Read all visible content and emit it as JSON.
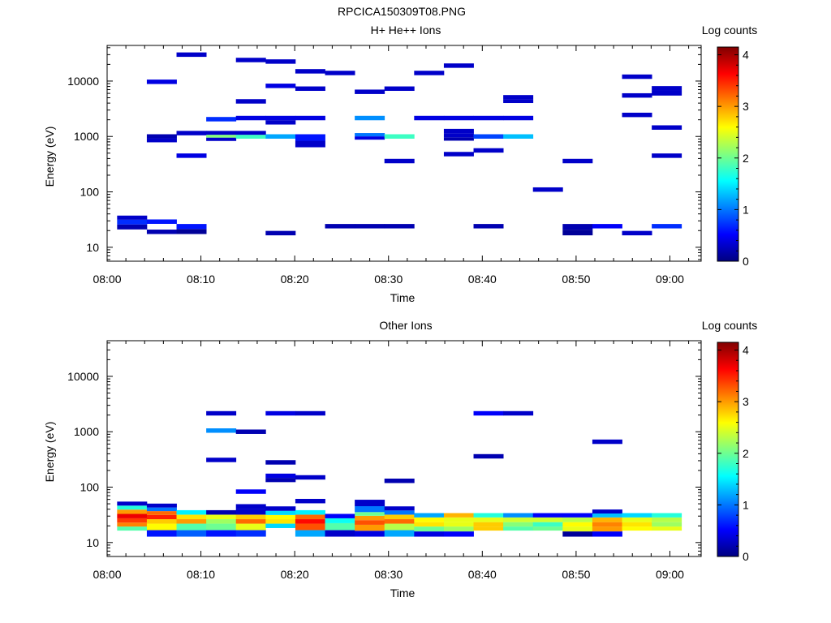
{
  "figure_title": "RPCICA150309T08.PNG",
  "chart_data": [
    {
      "type": "heatmap",
      "title": "H+ He++ Ions",
      "xlabel": "Time",
      "ylabel": "Energy (eV)",
      "colorbar_label": "Log counts",
      "colorbar_ticks": [
        "0",
        "1",
        "2",
        "3",
        "4"
      ],
      "clim": [
        0,
        4.15
      ],
      "colormap": "jet",
      "yscale": "log",
      "ylim": [
        5.6,
        44000
      ],
      "xlim": [
        "08:00",
        "09:03:20"
      ],
      "x_ticks": [
        "08:00",
        "08:10",
        "08:20",
        "08:30",
        "08:40",
        "08:50",
        "09:00"
      ],
      "y_ticks": [
        "10",
        "100",
        "1000",
        "10000"
      ],
      "time_bin_minutes": 3.2,
      "bins": [
        {
          "t": "08:02:40",
          "e": 23,
          "v": 0.2
        },
        {
          "t": "08:02:40",
          "e": 29,
          "v": 0.7
        },
        {
          "t": "08:02:40",
          "e": 34,
          "v": 0.3
        },
        {
          "t": "08:05:50",
          "e": 9700,
          "v": 0.4
        },
        {
          "t": "08:05:50",
          "e": 1000,
          "v": 0.2
        },
        {
          "t": "08:05:50",
          "e": 860,
          "v": 0.3
        },
        {
          "t": "08:05:50",
          "e": 29,
          "v": 0.6
        },
        {
          "t": "08:05:50",
          "e": 19,
          "v": 0.2
        },
        {
          "t": "08:09:00",
          "e": 30000,
          "v": 0.3
        },
        {
          "t": "08:09:00",
          "e": 1150,
          "v": 0.3
        },
        {
          "t": "08:09:00",
          "e": 450,
          "v": 0.4
        },
        {
          "t": "08:09:00",
          "e": 24,
          "v": 0.6
        },
        {
          "t": "08:09:00",
          "e": 19,
          "v": 0.1
        },
        {
          "t": "08:12:10",
          "e": 2050,
          "v": 0.7
        },
        {
          "t": "08:12:10",
          "e": 1150,
          "v": 0.3
        },
        {
          "t": "08:12:10",
          "e": 1000,
          "v": 2.1
        },
        {
          "t": "08:12:10",
          "e": 910,
          "v": 0.3
        },
        {
          "t": "08:15:20",
          "e": 24000,
          "v": 0.3
        },
        {
          "t": "08:15:20",
          "e": 4300,
          "v": 0.3
        },
        {
          "t": "08:15:20",
          "e": 2150,
          "v": 0.4
        },
        {
          "t": "08:15:20",
          "e": 1150,
          "v": 0.3
        },
        {
          "t": "08:15:20",
          "e": 1000,
          "v": 1.8
        },
        {
          "t": "08:18:30",
          "e": 22500,
          "v": 0.3
        },
        {
          "t": "08:18:30",
          "e": 8200,
          "v": 0.4
        },
        {
          "t": "08:18:30",
          "e": 2150,
          "v": 0.4
        },
        {
          "t": "08:18:30",
          "e": 1800,
          "v": 0.3
        },
        {
          "t": "08:18:30",
          "e": 1000,
          "v": 1.2
        },
        {
          "t": "08:18:30",
          "e": 18,
          "v": 0.2
        },
        {
          "t": "08:21:40",
          "e": 15000,
          "v": 0.3
        },
        {
          "t": "08:21:40",
          "e": 7300,
          "v": 0.3
        },
        {
          "t": "08:21:40",
          "e": 2150,
          "v": 0.4
        },
        {
          "t": "08:21:40",
          "e": 1000,
          "v": 0.6
        },
        {
          "t": "08:21:40",
          "e": 700,
          "v": 0.3
        },
        {
          "t": "08:24:50",
          "e": 14000,
          "v": 0.3
        },
        {
          "t": "08:24:50",
          "e": 24,
          "v": 0.2
        },
        {
          "t": "08:28:00",
          "e": 6400,
          "v": 0.3
        },
        {
          "t": "08:28:00",
          "e": 2150,
          "v": 1.1
        },
        {
          "t": "08:28:00",
          "e": 1050,
          "v": 1.0
        },
        {
          "t": "08:28:00",
          "e": 960,
          "v": 0.4
        },
        {
          "t": "08:28:00",
          "e": 24,
          "v": 0.2
        },
        {
          "t": "08:31:10",
          "e": 7300,
          "v": 0.3
        },
        {
          "t": "08:31:10",
          "e": 1000,
          "v": 1.8
        },
        {
          "t": "08:31:10",
          "e": 360,
          "v": 0.3
        },
        {
          "t": "08:31:10",
          "e": 24,
          "v": 0.2
        },
        {
          "t": "08:34:20",
          "e": 14000,
          "v": 0.3
        },
        {
          "t": "08:34:20",
          "e": 2150,
          "v": 0.4
        },
        {
          "t": "08:37:30",
          "e": 19000,
          "v": 0.3
        },
        {
          "t": "08:37:30",
          "e": 2150,
          "v": 0.4
        },
        {
          "t": "08:37:30",
          "e": 1250,
          "v": 0.3
        },
        {
          "t": "08:37:30",
          "e": 1020,
          "v": 0.3
        },
        {
          "t": "08:37:30",
          "e": 920,
          "v": 0.2
        },
        {
          "t": "08:37:30",
          "e": 480,
          "v": 0.3
        },
        {
          "t": "08:40:40",
          "e": 2150,
          "v": 0.4
        },
        {
          "t": "08:40:40",
          "e": 1000,
          "v": 0.8
        },
        {
          "t": "08:40:40",
          "e": 560,
          "v": 0.3
        },
        {
          "t": "08:40:40",
          "e": 24,
          "v": 0.2
        },
        {
          "t": "08:43:50",
          "e": 5100,
          "v": 0.3
        },
        {
          "t": "08:43:50",
          "e": 4400,
          "v": 0.3
        },
        {
          "t": "08:43:50",
          "e": 2150,
          "v": 0.4
        },
        {
          "t": "08:43:50",
          "e": 1000,
          "v": 1.3
        },
        {
          "t": "08:47:00",
          "e": 110,
          "v": 0.3
        },
        {
          "t": "08:50:10",
          "e": 360,
          "v": 0.3
        },
        {
          "t": "08:50:10",
          "e": 24,
          "v": 0.2
        },
        {
          "t": "08:50:10",
          "e": 18,
          "v": 0.1
        },
        {
          "t": "08:53:20",
          "e": 24,
          "v": 0.5
        },
        {
          "t": "08:56:30",
          "e": 12000,
          "v": 0.3
        },
        {
          "t": "08:56:30",
          "e": 5500,
          "v": 0.3
        },
        {
          "t": "08:56:30",
          "e": 2450,
          "v": 0.3
        },
        {
          "t": "08:56:30",
          "e": 18,
          "v": 0.3
        },
        {
          "t": "08:59:40",
          "e": 7400,
          "v": 0.3
        },
        {
          "t": "08:59:40",
          "e": 6000,
          "v": 0.3
        },
        {
          "t": "08:59:40",
          "e": 1450,
          "v": 0.3
        },
        {
          "t": "08:59:40",
          "e": 450,
          "v": 0.3
        },
        {
          "t": "08:59:40",
          "e": 24,
          "v": 0.7
        }
      ]
    },
    {
      "type": "heatmap",
      "title": "Other Ions",
      "xlabel": "Time",
      "ylabel": "Energy (eV)",
      "colorbar_label": "Log counts",
      "colorbar_ticks": [
        "0",
        "1",
        "2",
        "3",
        "4"
      ],
      "clim": [
        0,
        4.15
      ],
      "colormap": "jet",
      "yscale": "log",
      "ylim": [
        5.6,
        44000
      ],
      "xlim": [
        "08:00",
        "09:03:20"
      ],
      "x_ticks": [
        "08:00",
        "08:10",
        "08:20",
        "08:30",
        "08:40",
        "08:50",
        "09:00"
      ],
      "y_ticks": [
        "10",
        "100",
        "1000",
        "10000"
      ],
      "time_bin_minutes": 3.2,
      "bins": [
        {
          "t": "08:02:40",
          "e": 50,
          "v": 0.3
        },
        {
          "t": "08:02:40",
          "e": 43,
          "v": 1.7
        },
        {
          "t": "08:02:40",
          "e": 36,
          "v": 3.0
        },
        {
          "t": "08:02:40",
          "e": 30,
          "v": 3.7
        },
        {
          "t": "08:02:40",
          "e": 25,
          "v": 3.4
        },
        {
          "t": "08:02:40",
          "e": 21,
          "v": 3.1
        },
        {
          "t": "08:02:40",
          "e": 18,
          "v": 1.9
        },
        {
          "t": "08:05:50",
          "e": 46,
          "v": 0.3
        },
        {
          "t": "08:05:50",
          "e": 40,
          "v": 1.0
        },
        {
          "t": "08:05:50",
          "e": 34,
          "v": 3.2
        },
        {
          "t": "08:05:50",
          "e": 29,
          "v": 3.5
        },
        {
          "t": "08:05:50",
          "e": 24,
          "v": 2.8
        },
        {
          "t": "08:05:50",
          "e": 20,
          "v": 2.6
        },
        {
          "t": "08:05:50",
          "e": 14,
          "v": 0.6
        },
        {
          "t": "08:09:00",
          "e": 35,
          "v": 1.5
        },
        {
          "t": "08:09:00",
          "e": 29,
          "v": 2.7
        },
        {
          "t": "08:09:00",
          "e": 24,
          "v": 3.0
        },
        {
          "t": "08:09:00",
          "e": 20,
          "v": 1.9
        },
        {
          "t": "08:09:00",
          "e": 14,
          "v": 0.9
        },
        {
          "t": "08:12:10",
          "e": 2150,
          "v": 0.3
        },
        {
          "t": "08:12:10",
          "e": 1050,
          "v": 1.1
        },
        {
          "t": "08:12:10",
          "e": 310,
          "v": 0.3
        },
        {
          "t": "08:12:10",
          "e": 35,
          "v": 0.2
        },
        {
          "t": "08:12:10",
          "e": 29,
          "v": 2.5
        },
        {
          "t": "08:12:10",
          "e": 24,
          "v": 2.2
        },
        {
          "t": "08:12:10",
          "e": 20,
          "v": 2.0
        },
        {
          "t": "08:12:10",
          "e": 14,
          "v": 0.6
        },
        {
          "t": "08:15:20",
          "e": 1000,
          "v": 0.2
        },
        {
          "t": "08:15:20",
          "e": 83,
          "v": 0.5
        },
        {
          "t": "08:15:20",
          "e": 45,
          "v": 0.3
        },
        {
          "t": "08:15:20",
          "e": 35,
          "v": 0.3
        },
        {
          "t": "08:15:20",
          "e": 29,
          "v": 2.8
        },
        {
          "t": "08:15:20",
          "e": 24,
          "v": 3.2
        },
        {
          "t": "08:15:20",
          "e": 20,
          "v": 2.5
        },
        {
          "t": "08:15:20",
          "e": 14,
          "v": 0.7
        },
        {
          "t": "08:18:30",
          "e": 2150,
          "v": 0.4
        },
        {
          "t": "08:18:30",
          "e": 280,
          "v": 0.2
        },
        {
          "t": "08:18:30",
          "e": 160,
          "v": 0.4
        },
        {
          "t": "08:18:30",
          "e": 135,
          "v": 0.2
        },
        {
          "t": "08:18:30",
          "e": 41,
          "v": 0.3
        },
        {
          "t": "08:18:30",
          "e": 34,
          "v": 1.4
        },
        {
          "t": "08:18:30",
          "e": 29,
          "v": 2.6
        },
        {
          "t": "08:18:30",
          "e": 24,
          "v": 2.7
        },
        {
          "t": "08:18:30",
          "e": 20,
          "v": 1.4
        },
        {
          "t": "08:21:40",
          "e": 2150,
          "v": 0.3
        },
        {
          "t": "08:21:40",
          "e": 150,
          "v": 0.3
        },
        {
          "t": "08:21:40",
          "e": 56,
          "v": 0.3
        },
        {
          "t": "08:21:40",
          "e": 35,
          "v": 1.5
        },
        {
          "t": "08:21:40",
          "e": 29,
          "v": 3.2
        },
        {
          "t": "08:21:40",
          "e": 24,
          "v": 3.6
        },
        {
          "t": "08:21:40",
          "e": 20,
          "v": 3.3
        },
        {
          "t": "08:21:40",
          "e": 14,
          "v": 1.2
        },
        {
          "t": "08:24:50",
          "e": 30,
          "v": 0.5
        },
        {
          "t": "08:24:50",
          "e": 25,
          "v": 1.6
        },
        {
          "t": "08:24:50",
          "e": 20,
          "v": 1.9
        },
        {
          "t": "08:24:50",
          "e": 14,
          "v": 0.3
        },
        {
          "t": "08:28:00",
          "e": 54,
          "v": 0.3
        },
        {
          "t": "08:28:00",
          "e": 38,
          "v": 1.0
        },
        {
          "t": "08:28:00",
          "e": 33,
          "v": 2.0
        },
        {
          "t": "08:28:00",
          "e": 28,
          "v": 3.0
        },
        {
          "t": "08:28:00",
          "e": 23,
          "v": 3.3
        },
        {
          "t": "08:28:00",
          "e": 19,
          "v": 3.0
        },
        {
          "t": "08:28:00",
          "e": 14,
          "v": 0.4
        },
        {
          "t": "08:31:10",
          "e": 130,
          "v": 0.2
        },
        {
          "t": "08:31:10",
          "e": 41,
          "v": 0.3
        },
        {
          "t": "08:31:10",
          "e": 35,
          "v": 1.0
        },
        {
          "t": "08:31:10",
          "e": 29,
          "v": 2.8
        },
        {
          "t": "08:31:10",
          "e": 24,
          "v": 3.2
        },
        {
          "t": "08:31:10",
          "e": 20,
          "v": 2.3
        },
        {
          "t": "08:31:10",
          "e": 14,
          "v": 1.2
        },
        {
          "t": "08:34:20",
          "e": 31,
          "v": 1.2
        },
        {
          "t": "08:34:20",
          "e": 26,
          "v": 2.6
        },
        {
          "t": "08:34:20",
          "e": 21,
          "v": 2.7
        },
        {
          "t": "08:34:20",
          "e": 18,
          "v": 2.0
        },
        {
          "t": "08:34:20",
          "e": 14,
          "v": 0.4
        },
        {
          "t": "08:37:30",
          "e": 31,
          "v": 2.9
        },
        {
          "t": "08:37:30",
          "e": 26,
          "v": 2.5
        },
        {
          "t": "08:37:30",
          "e": 21,
          "v": 2.5
        },
        {
          "t": "08:37:30",
          "e": 18,
          "v": 2.2
        },
        {
          "t": "08:37:30",
          "e": 14,
          "v": 0.5
        },
        {
          "t": "08:40:40",
          "e": 2150,
          "v": 0.5
        },
        {
          "t": "08:40:40",
          "e": 360,
          "v": 0.2
        },
        {
          "t": "08:40:40",
          "e": 31,
          "v": 1.7
        },
        {
          "t": "08:40:40",
          "e": 26,
          "v": 2.5
        },
        {
          "t": "08:40:40",
          "e": 21,
          "v": 2.8
        },
        {
          "t": "08:40:40",
          "e": 18,
          "v": 2.8
        },
        {
          "t": "08:43:50",
          "e": 2150,
          "v": 0.3
        },
        {
          "t": "08:43:50",
          "e": 31,
          "v": 1.1
        },
        {
          "t": "08:43:50",
          "e": 26,
          "v": 2.4
        },
        {
          "t": "08:43:50",
          "e": 21,
          "v": 2.1
        },
        {
          "t": "08:43:50",
          "e": 18,
          "v": 1.9
        },
        {
          "t": "08:47:00",
          "e": 31,
          "v": 0.5
        },
        {
          "t": "08:47:00",
          "e": 26,
          "v": 2.4
        },
        {
          "t": "08:47:00",
          "e": 21,
          "v": 1.8
        },
        {
          "t": "08:47:00",
          "e": 18,
          "v": 2.0
        },
        {
          "t": "08:50:10",
          "e": 31,
          "v": 0.5
        },
        {
          "t": "08:50:10",
          "e": 26,
          "v": 2.3
        },
        {
          "t": "08:50:10",
          "e": 21,
          "v": 2.6
        },
        {
          "t": "08:50:10",
          "e": 18,
          "v": 2.5
        },
        {
          "t": "08:50:10",
          "e": 14,
          "v": 0.1
        },
        {
          "t": "08:53:20",
          "e": 660,
          "v": 0.3
        },
        {
          "t": "08:53:20",
          "e": 36,
          "v": 0.3
        },
        {
          "t": "08:53:20",
          "e": 31,
          "v": 1.3
        },
        {
          "t": "08:53:20",
          "e": 26,
          "v": 2.9
        },
        {
          "t": "08:53:20",
          "e": 21,
          "v": 3.1
        },
        {
          "t": "08:53:20",
          "e": 18,
          "v": 3.0
        },
        {
          "t": "08:53:20",
          "e": 14,
          "v": 0.5
        },
        {
          "t": "08:56:30",
          "e": 31,
          "v": 1.4
        },
        {
          "t": "08:56:30",
          "e": 26,
          "v": 2.5
        },
        {
          "t": "08:56:30",
          "e": 21,
          "v": 2.7
        },
        {
          "t": "08:56:30",
          "e": 18,
          "v": 2.6
        },
        {
          "t": "08:59:40",
          "e": 31,
          "v": 1.7
        },
        {
          "t": "08:59:40",
          "e": 26,
          "v": 2.3
        },
        {
          "t": "08:59:40",
          "e": 21,
          "v": 2.2
        },
        {
          "t": "08:59:40",
          "e": 18,
          "v": 2.5
        }
      ]
    }
  ]
}
